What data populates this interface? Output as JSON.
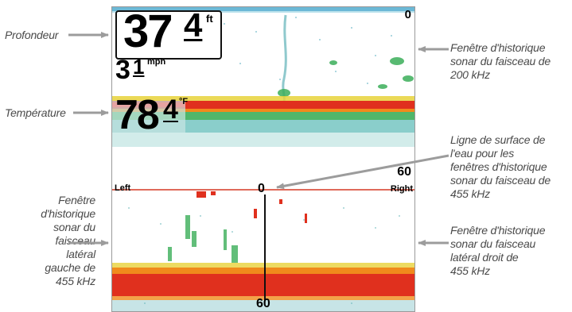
{
  "callouts": {
    "depth": "Profondeur",
    "temperature": "Température",
    "hist_200_l1": "Fenêtre d'historique",
    "hist_200_l2": "sonar du faisceau de",
    "hist_200_l3": "200 kHz",
    "surface_l1": "Ligne de surface de",
    "surface_l2": "l'eau pour les",
    "surface_l3": "fenêtres d'historique",
    "surface_l4": "sonar du faisceau de",
    "surface_l5": "455 kHz",
    "left_l1": "Fenêtre",
    "left_l2": "d'historique",
    "left_l3": "sonar du",
    "left_l4": "faisceau",
    "left_l5": "latéral",
    "left_l6": "gauche de",
    "left_l7": "455 kHz",
    "right_l1": "Fenêtre d'historique",
    "right_l2": "sonar du faisceau",
    "right_l3": "latéral droit de",
    "right_l4": "455 kHz"
  },
  "readouts": {
    "depth_int": "37",
    "depth_dec": "4",
    "depth_unit": "ft",
    "speed_int": "3",
    "speed_dec": "1",
    "speed_unit": "mph",
    "temp_int": "78",
    "temp_dec": "4",
    "temp_unit": "°F"
  },
  "scales": {
    "top_zero": "0",
    "top_sixty": "60",
    "bottom_zero": "0",
    "bottom_sixty": "60",
    "left": "Left",
    "right": "Right"
  },
  "colors": {
    "arrow": "#9c9c9c",
    "sonar_red": "#e0301e",
    "sonar_orange": "#f08a1c",
    "sonar_yellow": "#e8d23a",
    "sonar_green": "#3cae5a",
    "sonar_teal": "#2aa6a0"
  }
}
